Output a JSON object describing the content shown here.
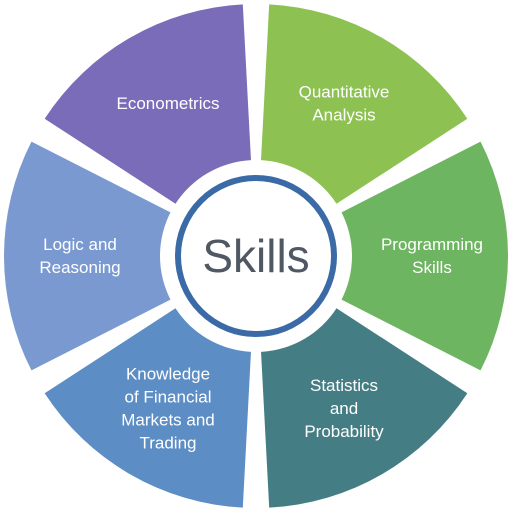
{
  "diagram": {
    "center": {
      "label": "Skills"
    },
    "segments": [
      {
        "id": "quantitative-analysis",
        "lines": [
          "Quantitative",
          "Analysis"
        ],
        "color": "#8dc152"
      },
      {
        "id": "programming-skills",
        "lines": [
          "Programming",
          "Skills"
        ],
        "color": "#6db560"
      },
      {
        "id": "statistics-and-probability",
        "lines": [
          "Statistics",
          "and",
          "Probability"
        ],
        "color": "#447e84"
      },
      {
        "id": "knowledge-of-financial-markets-and-trading",
        "lines": [
          "Knowledge",
          "of Financial",
          "Markets and",
          "Trading"
        ],
        "color": "#5c8dc4"
      },
      {
        "id": "logic-and-reasoning",
        "lines": [
          "Logic and",
          "Reasoning"
        ],
        "color": "#7a99d0"
      },
      {
        "id": "econometrics",
        "lines": [
          "Econometrics"
        ],
        "color": "#7a6cb8"
      }
    ],
    "colors": {
      "ring": "#3b6ba7",
      "center_text": "#505863",
      "label_text": "#ffffff",
      "background": "#ffffff"
    }
  }
}
